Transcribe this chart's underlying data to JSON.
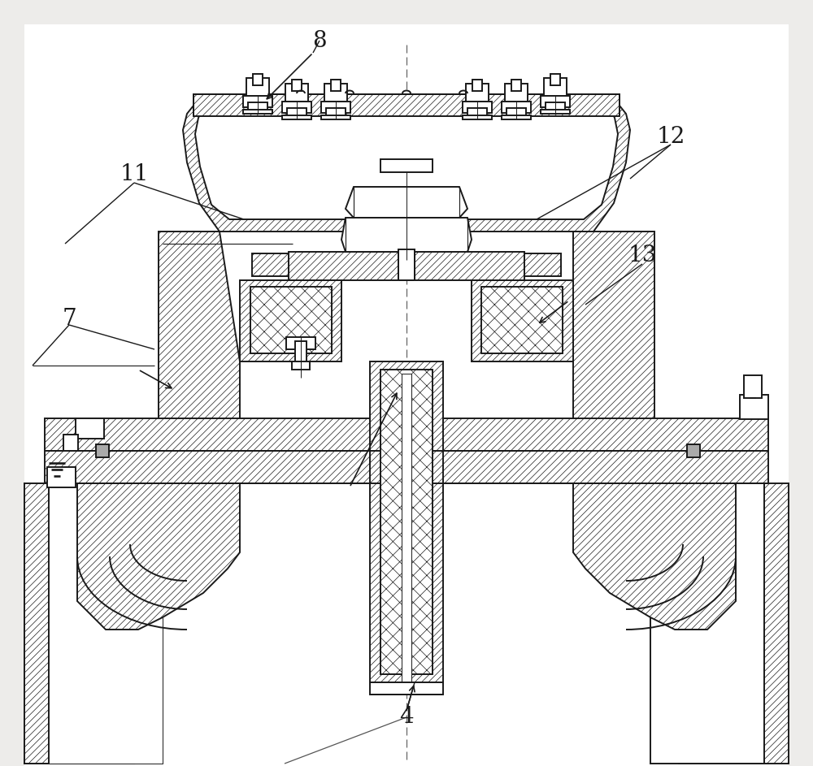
{
  "bg_color": "#edecea",
  "line_color": "#1a1a1a",
  "label_fontsize": 20,
  "centerline_color": "#666666",
  "drawing_lw": 1.4,
  "hatch_lw": 0.5
}
